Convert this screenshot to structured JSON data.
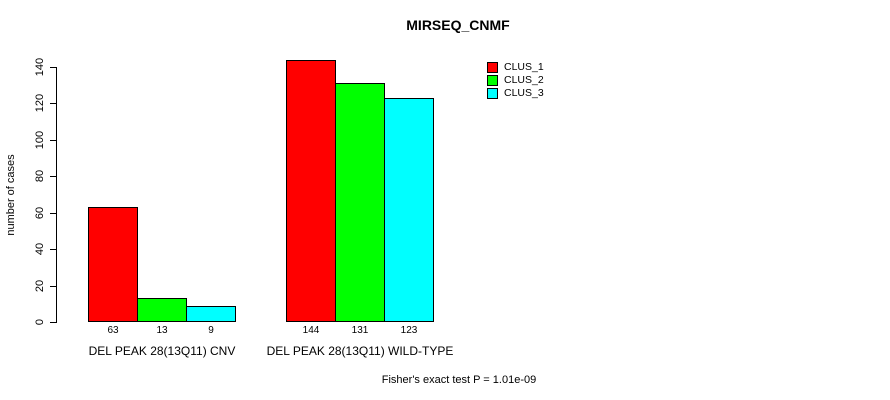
{
  "title": "MIRSEQ_CNMF",
  "chart_data": {
    "type": "bar",
    "title": "MIRSEQ_CNMF",
    "xlabel": "",
    "ylabel": "number of cases",
    "categories": [
      "DEL PEAK 28(13Q11) CNV",
      "DEL PEAK 28(13Q11) WILD-TYPE"
    ],
    "series": [
      {
        "name": "CLUS_1",
        "color": "#ff0000",
        "values": [
          63,
          144
        ]
      },
      {
        "name": "CLUS_2",
        "color": "#00ff00",
        "values": [
          13,
          131
        ]
      },
      {
        "name": "CLUS_3",
        "color": "#00ffff",
        "values": [
          9,
          123
        ]
      }
    ],
    "bar_value_labels": [
      [
        63,
        13,
        9
      ],
      [
        144,
        131,
        123
      ]
    ],
    "yticks": [
      0,
      20,
      40,
      60,
      80,
      100,
      120,
      140
    ],
    "ylim": [
      0,
      140
    ],
    "grid": false,
    "legend_position": "top-right",
    "bar_border_color": "#000000",
    "annotation": "Fisher's exact test P = 1.01e-09"
  }
}
